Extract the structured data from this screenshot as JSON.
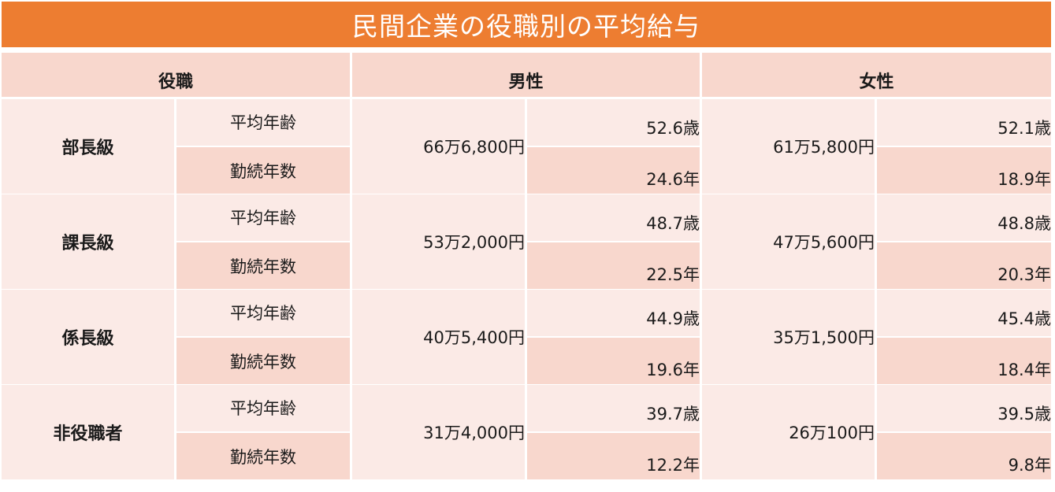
{
  "title": "民間企業の役職別の平均給与",
  "colors": {
    "accent": "#ED7D31",
    "header_bg": "#F8D7CD",
    "light_bg": "#FBEAE6",
    "dark_bg": "#F8D7CD"
  },
  "headers": {
    "position": "役職",
    "male": "男性",
    "female": "女性"
  },
  "rows": [
    {
      "rank": "部長級",
      "age_label": "平均年齢",
      "tenure_label": "勤続年数",
      "male_salary": "66万6,800円",
      "male_age": "52.6歳",
      "male_tenure": "24.6年",
      "female_salary": "61万5,800円",
      "female_age": "52.1歳",
      "female_tenure": "18.9年"
    },
    {
      "rank": "課長級",
      "age_label": "平均年齢",
      "tenure_label": "勤続年数",
      "male_salary": "53万2,000円",
      "male_age": "48.7歳",
      "male_tenure": "22.5年",
      "female_salary": "47万5,600円",
      "female_age": "48.8歳",
      "female_tenure": "20.3年"
    },
    {
      "rank": "係長級",
      "age_label": "平均年齢",
      "tenure_label": "勤続年数",
      "male_salary": "40万5,400円",
      "male_age": "44.9歳",
      "male_tenure": "19.6年",
      "female_salary": "35万1,500円",
      "female_age": "45.4歳",
      "female_tenure": "18.4年"
    },
    {
      "rank": "非役職者",
      "age_label": "平均年齢",
      "tenure_label": "勤続年数",
      "male_salary": "31万4,000円",
      "male_age": "39.7歳",
      "male_tenure": "12.2年",
      "female_salary": "26万100円",
      "female_age": "39.5歳",
      "female_tenure": "9.8年"
    }
  ]
}
